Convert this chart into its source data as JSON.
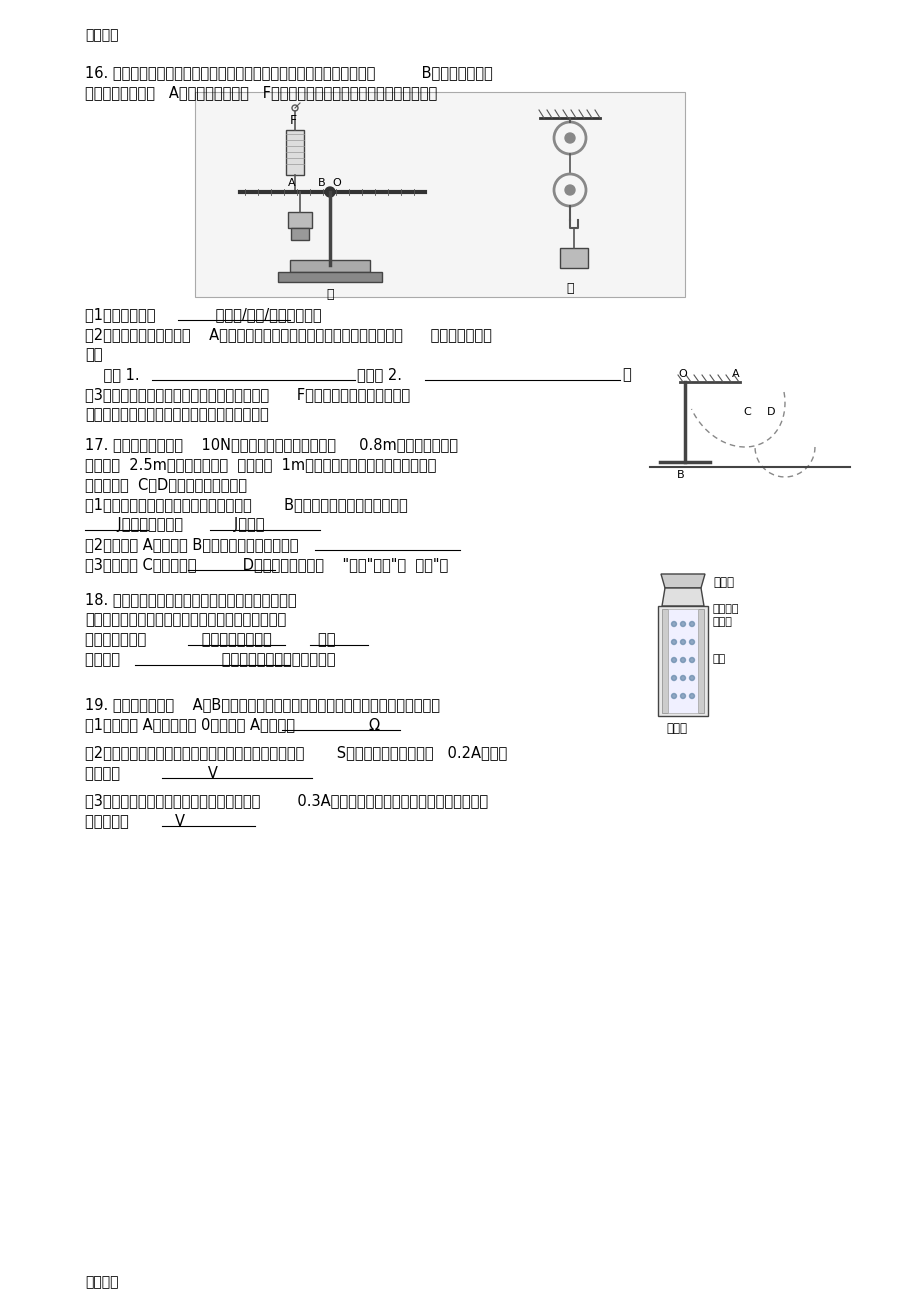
{
  "page_header": "精品文档",
  "page_footer": "精品文档",
  "background_color": "#ffffff",
  "text_color": "#000000",
  "q16_text1": "16. 用刻度均匀的均质杠杆开展探究活动，杠杆中心置于支架上，悬挂点          B上挂上钩码，弹",
  "q16_text2": "簧测力计在悬挂点   A竖直向上施加动力   F使杠杆在水平位置保持静止，如图甲所示。",
  "q16_sub1": "（1）该杠杆属于             （省力/费力/等臂）杠杆；",
  "q16_sub2": "（2）保持弹簧测力计挂钩    A点位置不变，可使弹簧测力计示数增加的方法：      （请写出两个方",
  "q16_sub3": "法）",
  "q16_sub4": "    方法 1.                              ；方法 2.                              ；",
  "q16_sub5": "（3）改用滑轮组，尝试以甲图同样大小的拉力      F提升相同重量的钩码。忽略",
  "q16_sub6": "机械器材自重和摩擦，请在右图画出绕绳方法。",
  "q17_text1": "17. 如图所示是一重为    10N的小球在水平桌面上滚动了     0.8m后离开桌面落到",
  "q17_text2": "距离桌子  2.5m的地面的过程。  若桌面高  1m，图中虚线所示为小球下落过程的",
  "q17_text3": "轨迹，其中  C、D是同一高度的两点；",
  "q17_sub1": "（1）小球从桌面上滚动到第一次接触地面       B点的过程中，桌面支持力做了",
  "q17_sub2": "       J的功，重力做了           J的功；",
  "q17_sub3": "（2）小球从 A点运动到 B点过程不断增加的能量是                    ",
  "q17_sub4": "（3）小球在 C点的机械能          D点的机械能（选填    \"大于\"小于\"或  等于\"）",
  "q18_text1": "18. 如图所示为生活中常用的热水瓶。注入一定量的",
  "q18_text2": "热水后，立即盖上软木塞，软木塞会跳起来。这一过",
  "q18_text3": "程中瓶内气体的            能转化为软木塞的          能。",
  "q18_text4": "汽油机的                      冲程也发生同样的能量转化。",
  "q19_text1": "19. 有两个电路元件    A和B，流过元件的电流与其两端电压的关系如图（甲）所示。",
  "q19_sub1": "（1）当元件 A两端电压为 0时，元件 A的阻值是                Ω",
  "q19_sub2": "（2）把它们串联在电路中，如图（乙）所示。闭合开关       S，这时电流表的示数为   0.2A，则电",
  "q19_sub3": "源电压是                   V",
  "q19_sub4": "（3）如果这两个元件允许通过最大电流均为        0.3A，若把它们同时并联在同一电路中，电源",
  "q19_sub5": "最高电压是          V"
}
